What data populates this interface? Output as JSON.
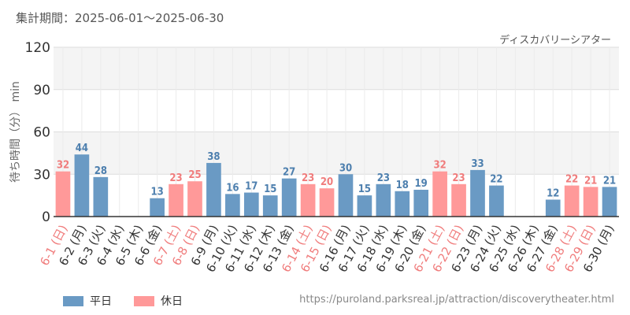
{
  "header": {
    "period": "集計期間：2025-06-01～2025-06-30",
    "source_url": "https://puroland.parksreal.jp/attraction/discoverytheater.html"
  },
  "legend": {
    "weekday_label": "平日",
    "holiday_label": "休日"
  },
  "colors": {
    "weekday": "#6a9ac4",
    "holiday": "#ff9999",
    "weekday_text": "#4d7fae",
    "holiday_text": "#f07c7c",
    "band": "#f4f4f4",
    "grid": "#dddddd"
  },
  "chart_data": {
    "type": "bar",
    "title": "ディスカバリーシアター",
    "ylabel": "待ち時間（分） min",
    "ylim": [
      0,
      120
    ],
    "yticks": [
      0,
      30,
      60,
      90,
      120
    ],
    "categories": [
      "6-1 (日)",
      "6-2 (月)",
      "6-3 (火)",
      "6-4 (水)",
      "6-5 (木)",
      "6-6 (金)",
      "6-7 (土)",
      "6-8 (日)",
      "6-9 (月)",
      "6-10 (火)",
      "6-11 (水)",
      "6-12 (木)",
      "6-13 (金)",
      "6-14 (土)",
      "6-15 (日)",
      "6-16 (月)",
      "6-17 (火)",
      "6-18 (水)",
      "6-19 (木)",
      "6-20 (金)",
      "6-21 (土)",
      "6-22 (日)",
      "6-23 (月)",
      "6-24 (火)",
      "6-25 (水)",
      "6-26 (木)",
      "6-27 (金)",
      "6-28 (土)",
      "6-29 (日)",
      "6-30 (月)"
    ],
    "values": [
      32,
      44,
      28,
      null,
      null,
      13,
      23,
      25,
      38,
      16,
      17,
      15,
      27,
      23,
      20,
      30,
      15,
      23,
      18,
      19,
      32,
      23,
      33,
      22,
      null,
      null,
      12,
      22,
      21,
      21
    ],
    "holiday": [
      true,
      false,
      false,
      false,
      false,
      false,
      true,
      true,
      false,
      false,
      false,
      false,
      false,
      true,
      true,
      false,
      false,
      false,
      false,
      false,
      true,
      true,
      false,
      false,
      false,
      false,
      false,
      true,
      true,
      false
    ],
    "series": [
      {
        "name": "平日"
      },
      {
        "name": "休日"
      }
    ]
  }
}
